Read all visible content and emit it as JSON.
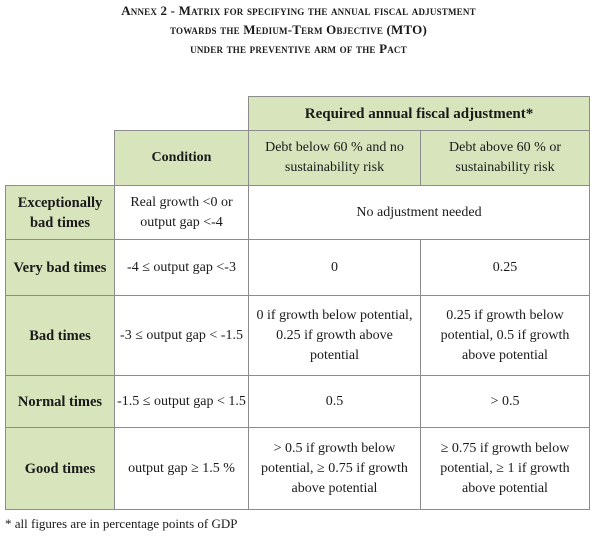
{
  "title": {
    "line1": "Annex 2 - Matrix for specifying the annual fiscal adjustment",
    "line2": "towards the Medium-Term Objective (MTO)",
    "line3": "under the preventive arm of the Pact"
  },
  "table": {
    "header_main": "Required annual fiscal adjustment*",
    "condition_header": "Condition",
    "col_debt_below": "Debt below 60 % and no sustainability risk",
    "col_debt_above": "Debt above 60 % or sustainability risk",
    "rows": [
      {
        "label": "Exceptionally bad times",
        "condition": "Real growth <0 or output gap <-4",
        "merged": "No adjustment needed"
      },
      {
        "label": "Very bad times",
        "condition": "-4 ≤ output gap <-3",
        "below": "0",
        "above": "0.25"
      },
      {
        "label": "Bad times",
        "condition": "-3 ≤ output gap < -1.5",
        "below": "0 if growth below potential, 0.25 if growth above potential",
        "above": "0.25 if growth below potential, 0.5 if growth above potential"
      },
      {
        "label": "Normal times",
        "condition": "-1.5 ≤ output gap < 1.5",
        "below": "0.5",
        "above": "> 0.5"
      },
      {
        "label": "Good times",
        "condition": "output gap ≥ 1.5 %",
        "below": "> 0.5 if growth below potential, ≥ 0.75 if growth above potential",
        "above": "≥ 0.75 if growth below potential, ≥ 1 if growth above potential"
      }
    ]
  },
  "footnote": "* all figures are in percentage points of GDP",
  "colors": {
    "header_fill": "#d8e4bc",
    "border": "#8c8c8c"
  }
}
